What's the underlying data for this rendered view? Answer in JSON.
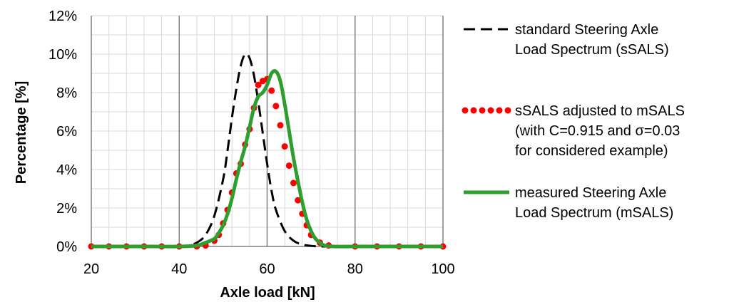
{
  "chart_data": {
    "type": "line",
    "title": "",
    "xlabel": "Axle load [kN]",
    "ylabel": "Percentage [%]",
    "xlim": [
      20,
      100
    ],
    "ylim": [
      0,
      12
    ],
    "x_ticks": [
      20,
      40,
      60,
      80,
      100
    ],
    "x_tick_labels": [
      "20",
      "40",
      "60",
      "80",
      "100"
    ],
    "y_ticks": [
      0,
      2,
      4,
      6,
      8,
      10,
      12
    ],
    "y_tick_labels": [
      "0%",
      "2%",
      "4%",
      "6%",
      "8%",
      "10%",
      "12%"
    ],
    "grid": true,
    "legend_position": "right",
    "series": [
      {
        "name_lines": [
          "standard Steering Axle",
          "Load Spectrum (sSALS)"
        ],
        "style": "dashed",
        "color": "#000000",
        "x": [
          20,
          30,
          40,
          42,
          44,
          46,
          48,
          50,
          51,
          52,
          53,
          54,
          55,
          56,
          57,
          58,
          59,
          60,
          61,
          62,
          64,
          66,
          68,
          70,
          72,
          74,
          80,
          100
        ],
        "y": [
          0,
          0,
          0,
          0.05,
          0.2,
          0.6,
          1.6,
          3.5,
          5.0,
          6.7,
          8.2,
          9.4,
          10.0,
          9.8,
          8.9,
          7.5,
          5.9,
          4.3,
          2.9,
          1.9,
          0.8,
          0.3,
          0.1,
          0.03,
          0,
          0,
          0,
          0
        ]
      },
      {
        "name_lines": [
          "sSALS adjusted to mSALS",
          "(with C=0.915 and σ=0.03",
          "for considered example)"
        ],
        "style": "dotted",
        "color": "#ff0000",
        "x": [
          20,
          24,
          28,
          32,
          36,
          40,
          44,
          46,
          48,
          49,
          50,
          51,
          52,
          53,
          54,
          55,
          56,
          57,
          58,
          59,
          60,
          61,
          62,
          63,
          64,
          65,
          66,
          67,
          68,
          69,
          70,
          72,
          74,
          80,
          85,
          90,
          95,
          100
        ],
        "y": [
          0,
          0,
          0,
          0,
          0,
          0,
          0,
          0.05,
          0.3,
          0.6,
          1.2,
          1.9,
          2.8,
          3.8,
          4.3,
          5.3,
          6.1,
          7.2,
          8.4,
          8.6,
          8.7,
          8.1,
          7.3,
          6.3,
          5.2,
          4.2,
          3.3,
          2.4,
          1.7,
          1.1,
          0.6,
          0.2,
          0.05,
          0,
          0,
          0,
          0,
          0
        ]
      },
      {
        "name_lines": [
          "measured Steering Axle",
          "Load Spectrum (mSALS)"
        ],
        "style": "solid",
        "color": "#2e9e2e",
        "x": [
          20,
          30,
          40,
          44,
          46,
          48,
          49,
          50,
          51,
          52,
          53,
          54,
          55,
          56,
          57,
          58,
          59,
          60,
          61,
          62,
          63,
          64,
          65,
          66,
          67,
          68,
          69,
          70,
          71,
          72,
          73,
          75,
          80,
          90,
          100
        ],
        "y": [
          0,
          0,
          0,
          0.05,
          0.2,
          0.4,
          0.7,
          1.1,
          1.7,
          2.5,
          3.5,
          4.4,
          5.2,
          6.2,
          7.2,
          7.8,
          8.0,
          8.4,
          9.0,
          9.1,
          8.6,
          7.4,
          6.0,
          4.6,
          3.4,
          2.3,
          1.4,
          0.8,
          0.4,
          0.2,
          0.06,
          0,
          0,
          0,
          0
        ]
      }
    ]
  }
}
